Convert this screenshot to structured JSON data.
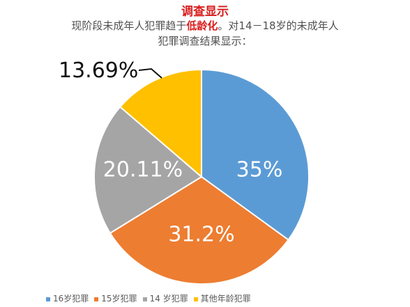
{
  "header": {
    "title": "调查显示",
    "subtitle_prefix": "现阶段未成年人犯罪趋于",
    "subtitle_highlight": "低龄化",
    "subtitle_suffix": "。对14－18岁的未成年人",
    "subtitle_line2": "犯罪调查结果显示："
  },
  "chart_data": {
    "type": "pie",
    "categories": [
      "16岁犯罪",
      "15岁犯罪",
      "14 岁犯罪",
      "其他年龄犯罪"
    ],
    "values": [
      35,
      31.2,
      20.11,
      13.69
    ],
    "labels": [
      "35%",
      "31.2%",
      "20.11%",
      "13.69%"
    ],
    "colors": [
      "#5b9bd5",
      "#ed7d31",
      "#a5a5a5",
      "#ffc000"
    ],
    "legend_position": "bottom"
  }
}
